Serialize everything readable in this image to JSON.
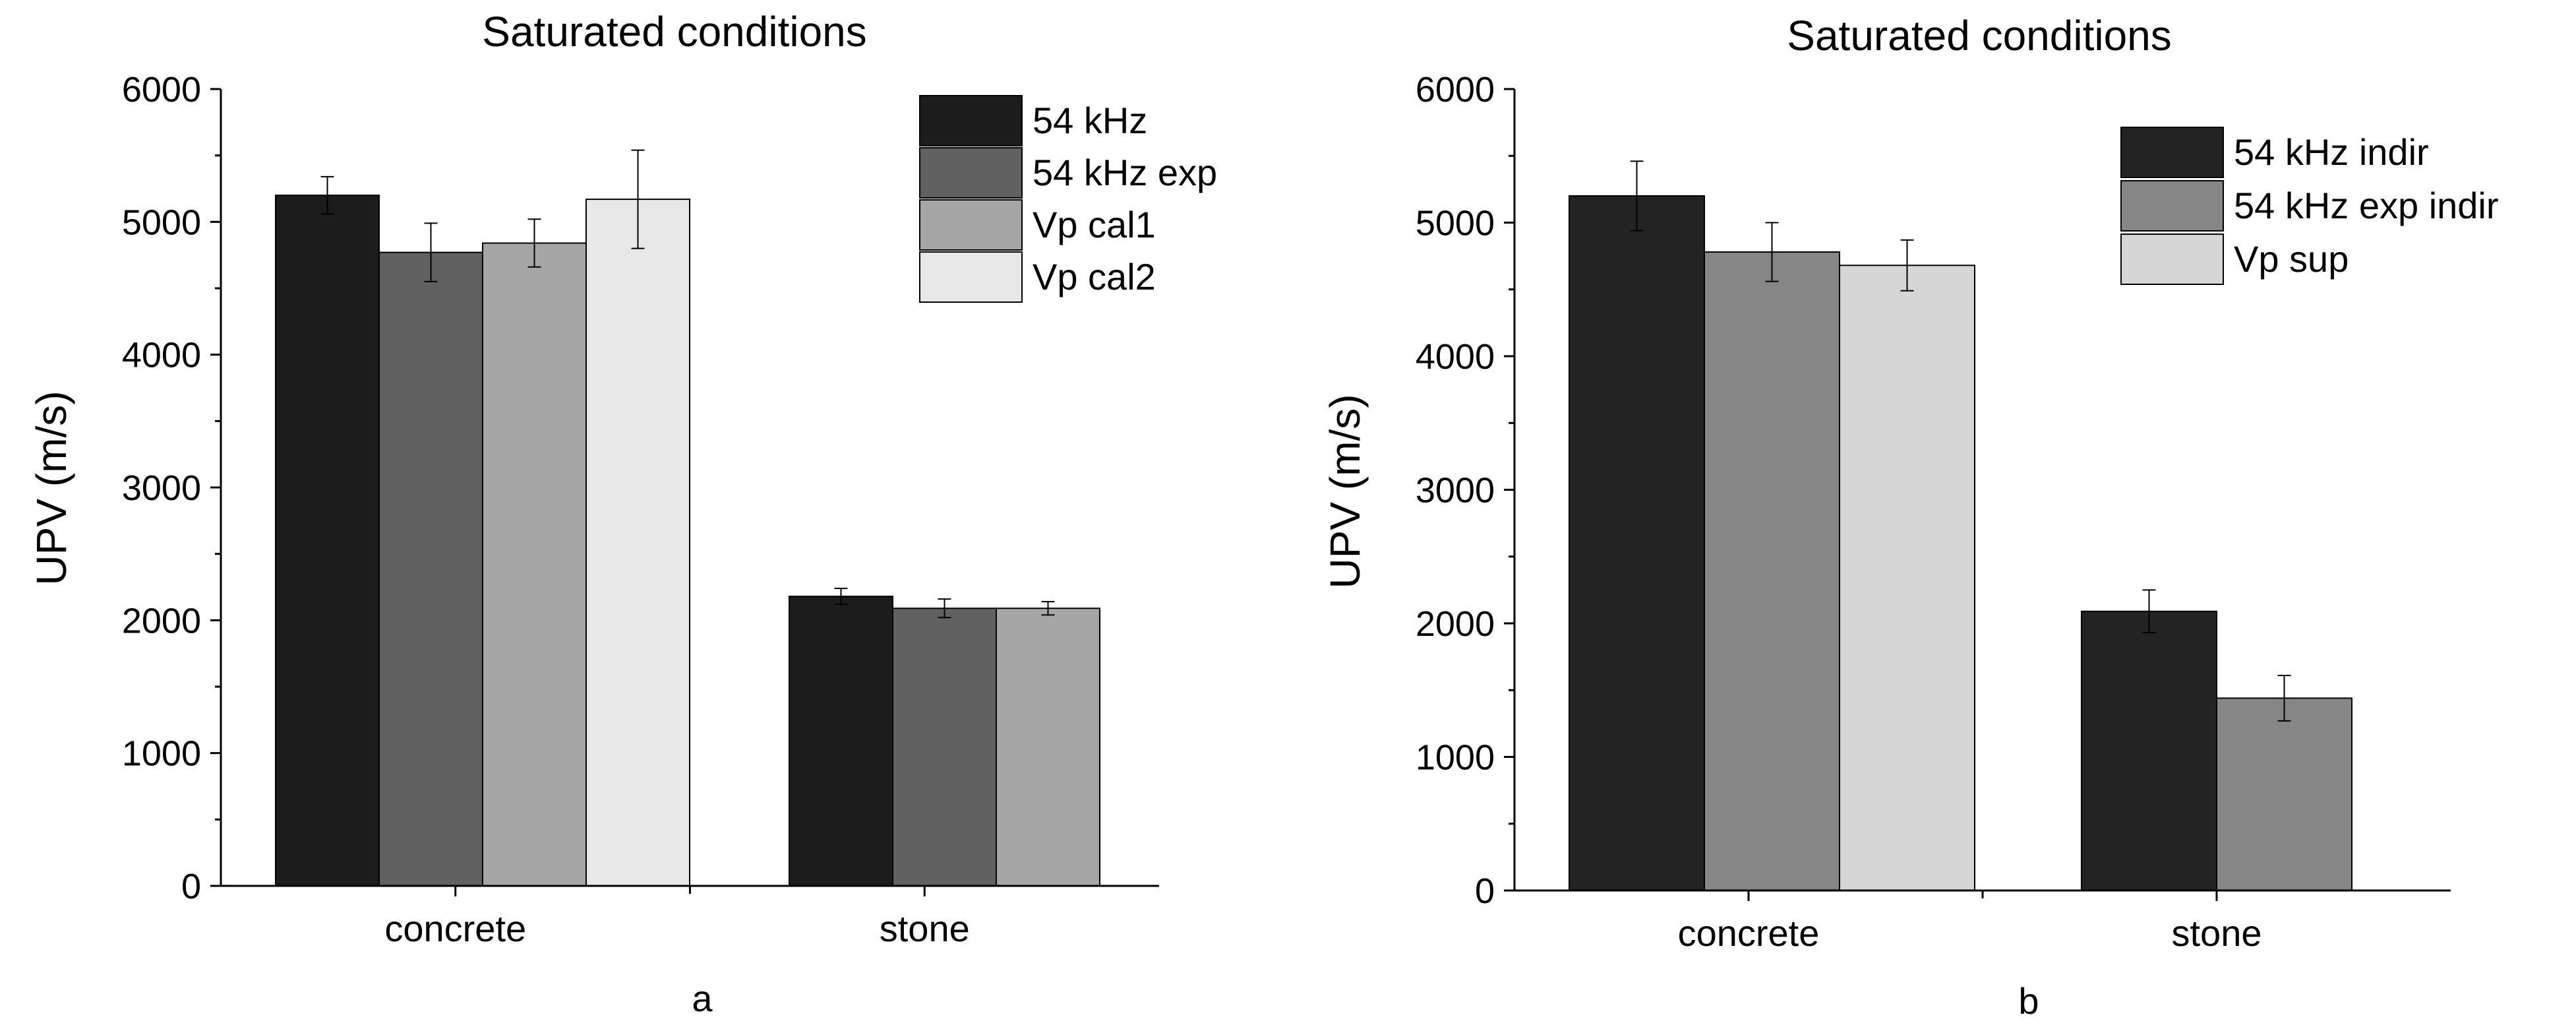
{
  "chart_data": [
    {
      "type": "bar",
      "panel_label": "a",
      "title": "Saturated conditions",
      "xlabel": "",
      "ylabel": "UPV (m/s)",
      "ylim": [
        0,
        6000
      ],
      "yticks": [
        0,
        1000,
        2000,
        3000,
        4000,
        5000,
        6000
      ],
      "categories": [
        "concrete",
        "stone"
      ],
      "legend_position": "top-right",
      "series": [
        {
          "name": "54 kHz",
          "color": "#1c1c1c",
          "values": [
            5200,
            2180
          ],
          "errors": [
            140,
            60
          ]
        },
        {
          "name": "54 kHz exp",
          "color": "#616161",
          "values": [
            4770,
            2090
          ],
          "errors": [
            220,
            70
          ]
        },
        {
          "name": "Vp cal1",
          "color": "#a6a6a6",
          "values": [
            4840,
            2090
          ],
          "errors": [
            180,
            50
          ]
        },
        {
          "name": "Vp cal2",
          "color": "#e8e8e8",
          "values": [
            5170,
            null
          ],
          "errors": [
            370,
            null
          ]
        }
      ]
    },
    {
      "type": "bar",
      "panel_label": "b",
      "title": "Saturated conditions",
      "xlabel": "",
      "ylabel": "UPV (m/s)",
      "ylim": [
        0,
        6000
      ],
      "yticks": [
        0,
        1000,
        2000,
        3000,
        4000,
        5000,
        6000
      ],
      "categories": [
        "concrete",
        "stone"
      ],
      "legend_position": "top-right",
      "series": [
        {
          "name": "54 kHz indir",
          "color": "#232323",
          "values": [
            5200,
            2090
          ],
          "errors": [
            260,
            160
          ]
        },
        {
          "name": "54 kHz exp indir",
          "color": "#868686",
          "values": [
            4780,
            1440
          ],
          "errors": [
            220,
            170
          ]
        },
        {
          "name": "Vp sup",
          "color": "#d6d6d6",
          "values": [
            4680,
            null
          ],
          "errors": [
            190,
            null
          ]
        }
      ]
    }
  ]
}
